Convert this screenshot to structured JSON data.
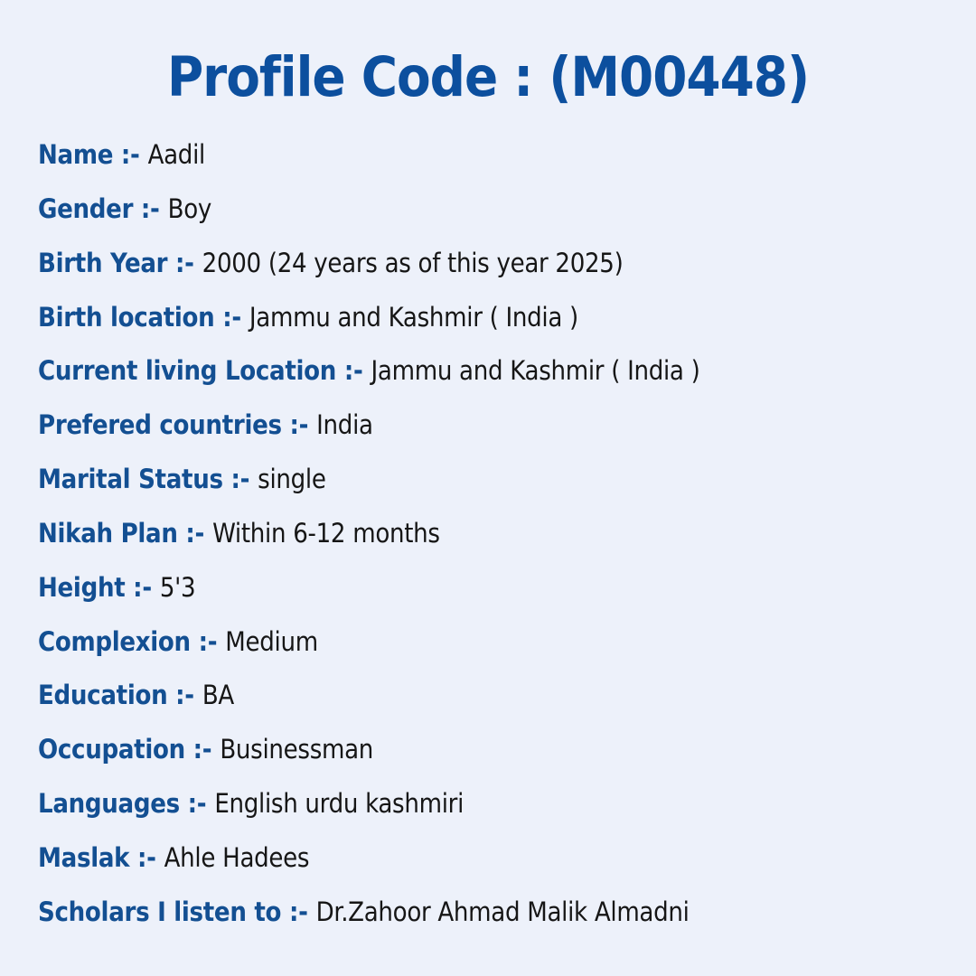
{
  "page": {
    "title": "Profile Code : (M00448)"
  },
  "profile": {
    "fields": [
      {
        "label": "Name :-",
        "value": "Aadil"
      },
      {
        "label": "Gender :-",
        "value": "Boy"
      },
      {
        "label": "Birth Year :-",
        "value": "2000 (24 years as of this year 2025)"
      },
      {
        "label": "Birth location :-",
        "value": "Jammu and Kashmir ( India )"
      },
      {
        "label": "Current living Location :-",
        "value": "Jammu and Kashmir ( India )"
      },
      {
        "label": "Prefered countries :-",
        "value": "India"
      },
      {
        "label": "Marital Status :-",
        "value": "single"
      },
      {
        "label": "Nikah Plan :-",
        "value": "Within 6-12 months"
      },
      {
        "label": "Height :-",
        "value": "5'3"
      },
      {
        "label": "Complexion :-",
        "value": "Medium"
      },
      {
        "label": "Education :-",
        "value": "BA"
      },
      {
        "label": "Occupation :-",
        "value": "Businessman"
      },
      {
        "label": "Languages :-",
        "value": "English urdu kashmiri"
      },
      {
        "label": "Maslak :-",
        "value": "Ahle Hadees"
      },
      {
        "label": "Scholars I listen to :-",
        "value": "Dr.Zahoor Ahmad Malik Almadni"
      }
    ]
  },
  "colors": {
    "background": "#edf1fa",
    "title_blue": "#0c4f9e",
    "label_blue": "#134f92",
    "value_text": "#161616"
  }
}
